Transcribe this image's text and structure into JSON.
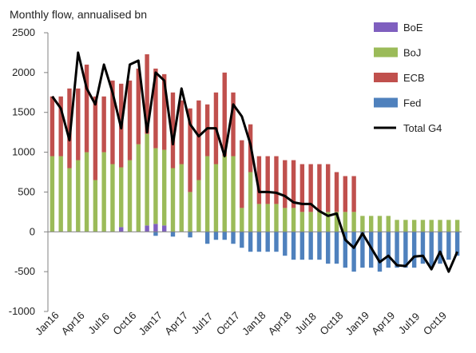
{
  "chart_data": {
    "type": "bar",
    "title": "Monthly flow, annualised bn",
    "xlabel": "",
    "ylabel": "",
    "ylim": [
      -1000,
      2500
    ],
    "yticks": [
      -1000,
      -500,
      0,
      500,
      1000,
      1500,
      2000,
      2500
    ],
    "grid": false,
    "legend_position": "right",
    "x": [
      "Jan16",
      "Feb16",
      "Mar16",
      "Apr16",
      "May16",
      "Jun16",
      "Jul16",
      "Aug16",
      "Sep16",
      "Oct16",
      "Nov16",
      "Dec16",
      "Jan17",
      "Feb17",
      "Mar17",
      "Apr17",
      "May17",
      "Jun17",
      "Jul17",
      "Aug17",
      "Sep17",
      "Oct17",
      "Nov17",
      "Dec17",
      "Jan18",
      "Feb18",
      "Mar18",
      "Apr18",
      "May18",
      "Jun18",
      "Jul18",
      "Aug18",
      "Sep18",
      "Oct18",
      "Nov18",
      "Dec18",
      "Jan19",
      "Feb19",
      "Mar19",
      "Apr19",
      "May19",
      "Jun19",
      "Jul19",
      "Aug19",
      "Sep19",
      "Oct19",
      "Nov19",
      "Dec19"
    ],
    "x_tick_labels": [
      "Jan16",
      "Apr16",
      "Jul16",
      "Oct16",
      "Jan17",
      "Apr17",
      "Jul17",
      "Oct17",
      "Jan18",
      "Apr18",
      "Jul18",
      "Oct18",
      "Jan19",
      "Apr19",
      "Jul19",
      "Oct19"
    ],
    "series": [
      {
        "name": "BoE",
        "kind": "stacked-bar",
        "color": "#7f5fbf",
        "values": [
          0,
          0,
          0,
          0,
          0,
          0,
          0,
          0,
          60,
          0,
          0,
          80,
          100,
          80,
          0,
          0,
          0,
          0,
          0,
          0,
          0,
          0,
          0,
          0,
          0,
          0,
          0,
          0,
          0,
          0,
          0,
          0,
          0,
          0,
          0,
          0,
          0,
          0,
          0,
          0,
          0,
          0,
          0,
          0,
          0,
          0,
          0,
          0
        ]
      },
      {
        "name": "BoJ",
        "kind": "stacked-bar",
        "color": "#9bbb59",
        "values": [
          950,
          950,
          800,
          900,
          1000,
          650,
          1000,
          850,
          750,
          900,
          1100,
          1150,
          950,
          950,
          800,
          850,
          500,
          650,
          950,
          850,
          950,
          950,
          300,
          750,
          350,
          350,
          350,
          300,
          300,
          250,
          250,
          250,
          250,
          250,
          250,
          250,
          200,
          200,
          200,
          200,
          150,
          150,
          150,
          150,
          150,
          150,
          150,
          150
        ]
      },
      {
        "name": "ECB",
        "kind": "stacked-bar",
        "color": "#c0504d",
        "values": [
          750,
          750,
          1000,
          900,
          1100,
          1050,
          700,
          1050,
          1050,
          1000,
          950,
          1000,
          1000,
          950,
          950,
          800,
          1050,
          1000,
          650,
          900,
          1050,
          800,
          850,
          600,
          600,
          600,
          600,
          600,
          600,
          600,
          600,
          600,
          600,
          500,
          450,
          450,
          0,
          0,
          0,
          0,
          0,
          0,
          0,
          0,
          0,
          0,
          0,
          0
        ]
      },
      {
        "name": "Fed",
        "kind": "stacked-bar",
        "color": "#4f81bd",
        "values": [
          0,
          0,
          0,
          0,
          0,
          0,
          0,
          0,
          0,
          0,
          0,
          0,
          -50,
          0,
          -60,
          0,
          -70,
          0,
          -150,
          -100,
          -100,
          -150,
          -200,
          -250,
          -250,
          -250,
          -250,
          -300,
          -350,
          -350,
          -350,
          -350,
          -400,
          -400,
          -450,
          -500,
          -450,
          -450,
          -500,
          -450,
          -450,
          -450,
          -450,
          -400,
          -450,
          -400,
          -350,
          -300
        ]
      },
      {
        "name": "Total G4",
        "kind": "line",
        "color": "#000000",
        "values": [
          1700,
          1550,
          1150,
          2250,
          1800,
          1600,
          2100,
          1750,
          1300,
          2100,
          2150,
          1250,
          2000,
          1900,
          1100,
          1800,
          1350,
          1200,
          1300,
          1300,
          950,
          1600,
          1450,
          1100,
          500,
          500,
          490,
          450,
          370,
          350,
          350,
          260,
          200,
          230,
          -100,
          -200,
          -20,
          -200,
          -380,
          -300,
          -420,
          -430,
          -310,
          -300,
          -470,
          -250,
          -500,
          -250
        ]
      }
    ]
  }
}
